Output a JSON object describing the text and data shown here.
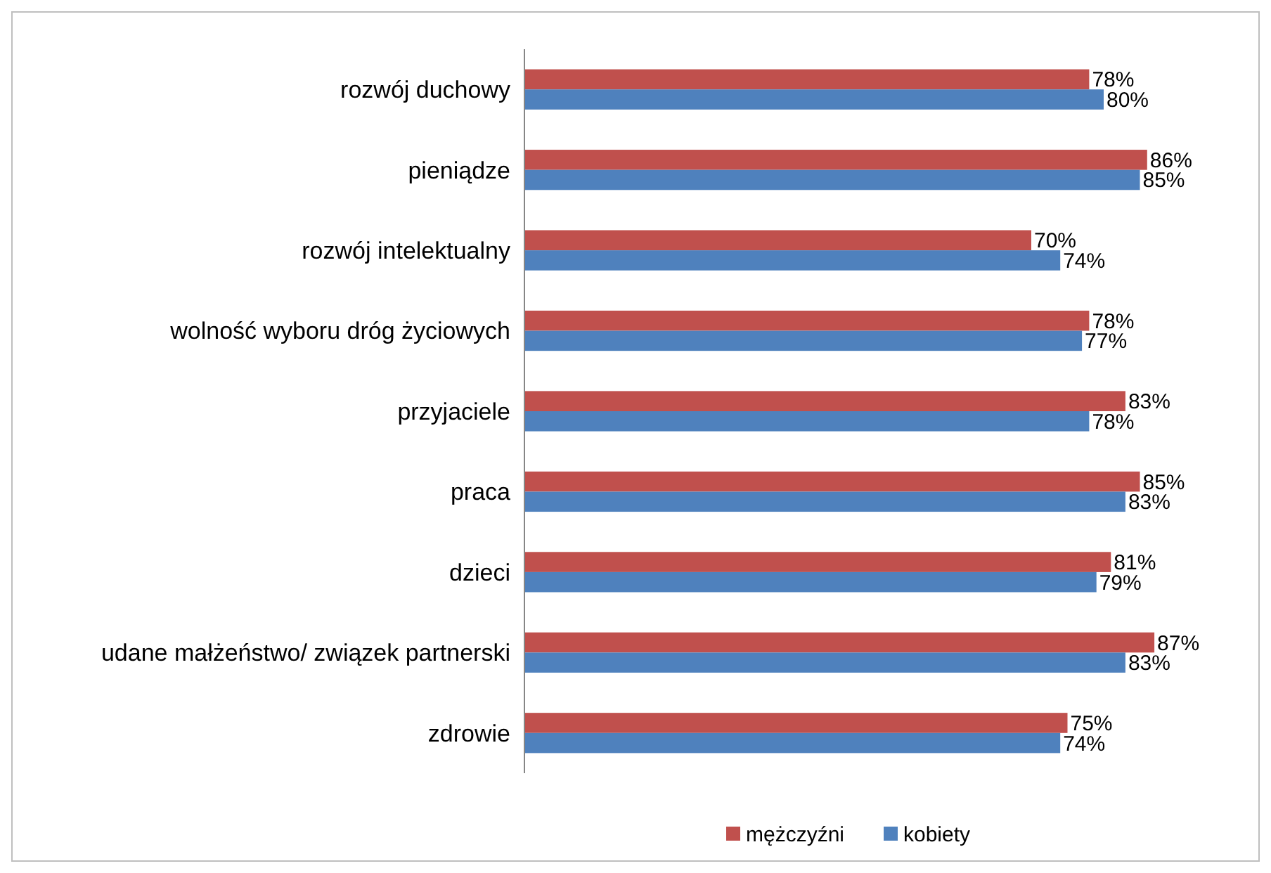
{
  "chart_data": {
    "type": "bar",
    "orientation": "horizontal",
    "categories": [
      "rozwój duchowy",
      "pieniądze",
      "rozwój intelektualny",
      "wolność wyboru dróg życiowych",
      "przyjaciele",
      "praca",
      "dzieci",
      "udane małżeństwo/ związek partnerski",
      "zdrowie"
    ],
    "series": [
      {
        "name": "mężczyźni",
        "color": "#c0504d",
        "values": [
          78,
          86,
          70,
          78,
          83,
          85,
          81,
          87,
          75
        ],
        "value_labels": [
          "78%",
          "86%",
          "70%",
          "78%",
          "83%",
          "85%",
          "81%",
          "87%",
          "75%"
        ]
      },
      {
        "name": "kobiety",
        "color": "#4f81bd",
        "values": [
          80,
          85,
          74,
          77,
          78,
          83,
          79,
          83,
          74
        ],
        "value_labels": [
          "80%",
          "85%",
          "74%",
          "77%",
          "78%",
          "83%",
          "79%",
          "83%",
          "74%"
        ]
      }
    ],
    "legend": "bottom",
    "grid": false
  }
}
